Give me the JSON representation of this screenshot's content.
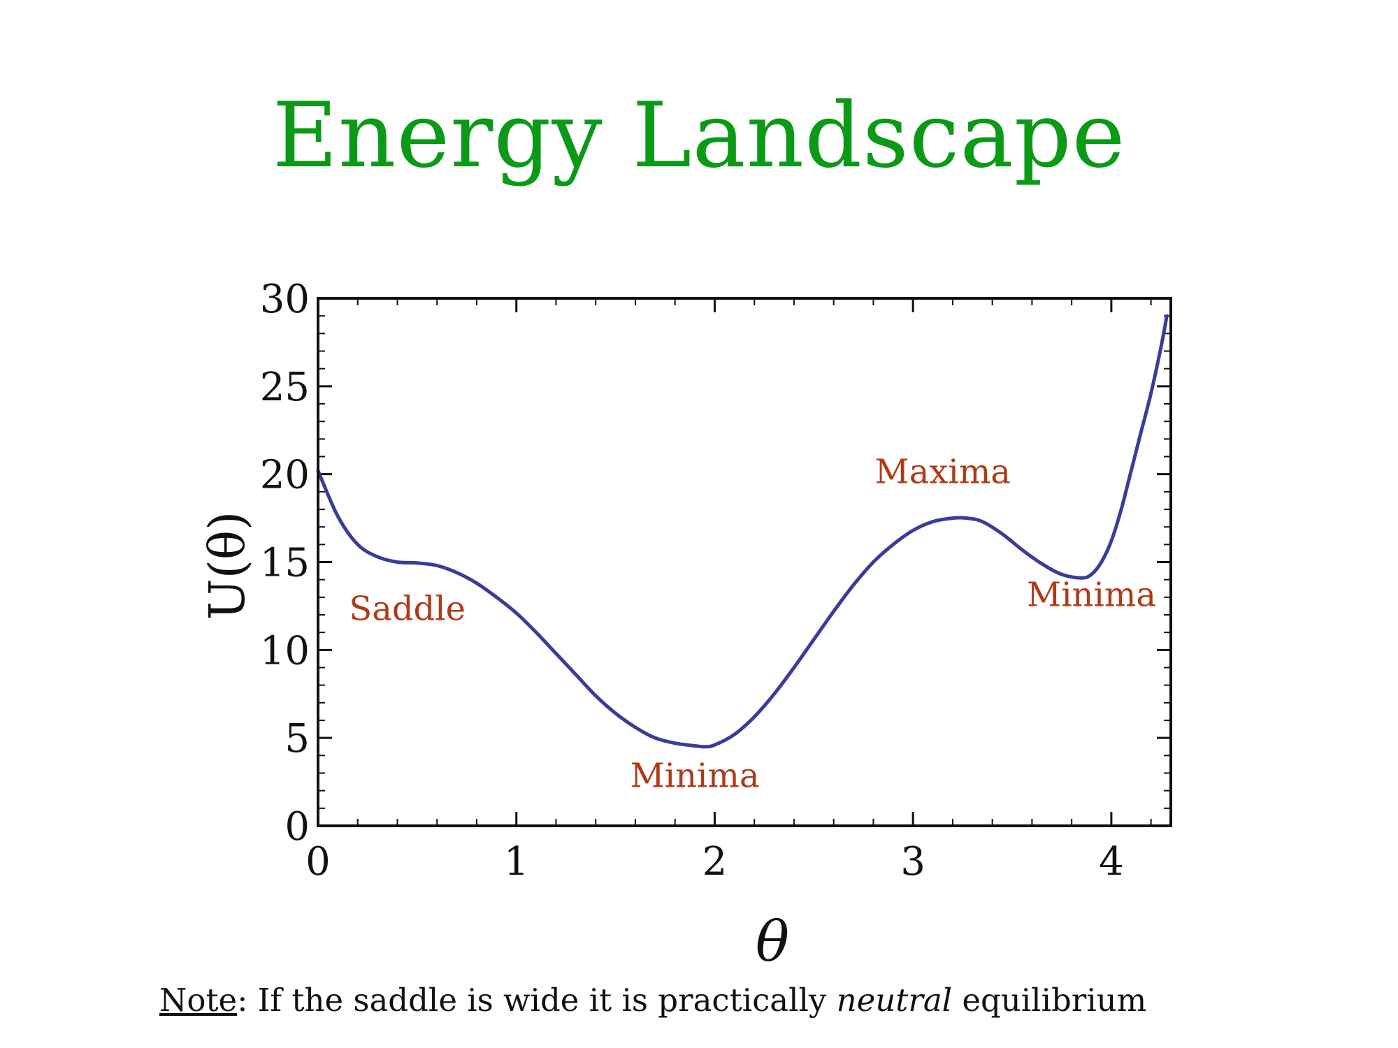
{
  "title": "Energy Landscape",
  "note": {
    "label": "Note",
    "text_before": ": If the saddle is wide it is practically ",
    "emphasis": "neutral",
    "text_after": " equilibrium"
  },
  "chart_data": {
    "type": "line",
    "xlabel": "θ",
    "ylabel": "U(θ)",
    "xlim": [
      0,
      4.3
    ],
    "ylim": [
      0,
      30
    ],
    "xticks": [
      0,
      1,
      2,
      3,
      4
    ],
    "yticks": [
      0,
      5,
      10,
      15,
      20,
      25,
      30
    ],
    "line_color": "#3b3b9a",
    "annotation_color": "#b03a16",
    "series": [
      {
        "x": [
          0,
          0.1,
          0.2,
          0.3,
          0.4,
          0.5,
          0.6,
          0.7,
          0.8,
          0.9,
          1.0,
          1.1,
          1.2,
          1.3,
          1.4,
          1.5,
          1.6,
          1.7,
          1.8,
          1.9,
          1.95,
          2.0,
          2.1,
          2.2,
          2.3,
          2.4,
          2.5,
          2.6,
          2.7,
          2.8,
          2.9,
          3.0,
          3.1,
          3.2,
          3.27,
          3.35,
          3.45,
          3.55,
          3.65,
          3.75,
          3.85,
          3.9,
          3.95,
          4.0,
          4.05,
          4.1,
          4.15,
          4.2,
          4.25,
          4.28
        ],
        "y": [
          20.2,
          17.6,
          16.0,
          15.3,
          15.0,
          14.95,
          14.8,
          14.4,
          13.8,
          13.0,
          12.1,
          11.0,
          9.8,
          8.6,
          7.4,
          6.4,
          5.6,
          5.0,
          4.7,
          4.55,
          4.5,
          4.6,
          5.2,
          6.2,
          7.5,
          9.0,
          10.6,
          12.2,
          13.7,
          15.0,
          16.0,
          16.8,
          17.3,
          17.5,
          17.5,
          17.3,
          16.6,
          15.7,
          14.9,
          14.3,
          14.1,
          14.3,
          15.0,
          16.2,
          18.0,
          20.2,
          22.4,
          24.6,
          27.2,
          29.0
        ]
      }
    ],
    "annotations": [
      {
        "text": "Saddle",
        "x": 0.45,
        "y": 11.7
      },
      {
        "text": "Minima",
        "x": 1.9,
        "y": 2.2
      },
      {
        "text": "Maxima",
        "x": 3.15,
        "y": 19.5
      },
      {
        "text": "Minima",
        "x": 3.9,
        "y": 12.5
      }
    ]
  }
}
